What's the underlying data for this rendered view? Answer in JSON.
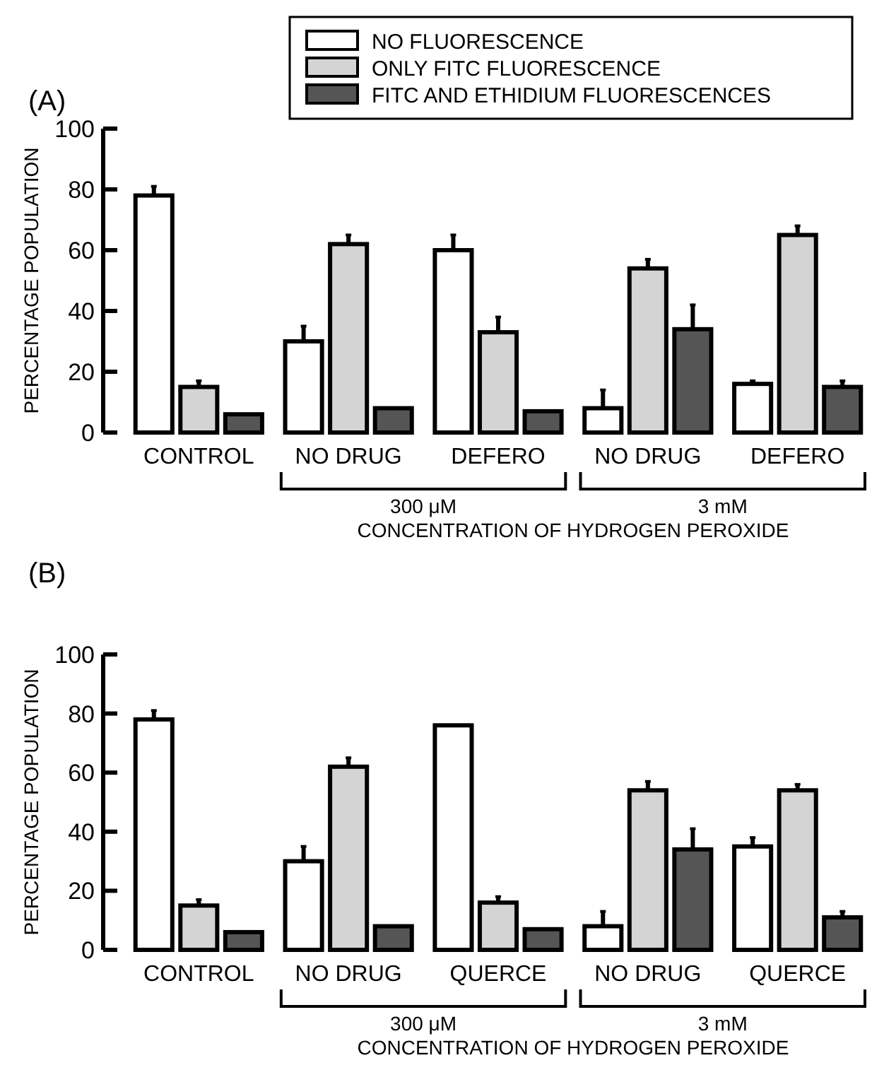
{
  "chart_data": [
    {
      "type": "bar",
      "title": "(A)",
      "ylabel": "PERCENTAGE POPULATION",
      "categories": [
        "CONTROL",
        "NO DRUG",
        "DEFERO",
        "NO DRUG",
        "DEFERO"
      ],
      "ylim": [
        0,
        100
      ],
      "yticks": [
        0,
        20,
        40,
        60,
        80,
        100
      ],
      "legend": "top right",
      "grid": false,
      "series": [
        {
          "name": "NO FLUORESCENCE",
          "color": "#ffffff",
          "values": [
            78,
            30,
            60,
            8,
            16
          ],
          "errors": [
            [
              78,
              81
            ],
            [
              30,
              35
            ],
            [
              60,
              65
            ],
            [
              8,
              14
            ],
            [
              16,
              17
            ]
          ]
        },
        {
          "name": "ONLY FITC FLUORESCENCE",
          "color": "#d4d4d4",
          "values": [
            15,
            62,
            33,
            54,
            65
          ],
          "errors": [
            [
              15,
              17
            ],
            [
              62,
              65
            ],
            [
              33,
              38
            ],
            [
              54,
              57
            ],
            [
              65,
              68
            ]
          ]
        },
        {
          "name": "FITC AND ETHIDIUM FLUORESCENCES",
          "color": "#555555",
          "values": [
            6,
            8,
            7,
            34,
            15
          ],
          "errors": [
            null,
            null,
            null,
            [
              34,
              42
            ],
            [
              15,
              17
            ]
          ]
        }
      ],
      "annotations": [
        "300 μM",
        "3 mM",
        "CONCENTRATION OF HYDROGEN PEROXIDE"
      ]
    },
    {
      "type": "bar",
      "title": "(B)",
      "ylabel": "PERCENTAGE POPULATION",
      "categories": [
        "CONTROL",
        "NO DRUG",
        "QUERCE",
        "NO DRUG",
        "QUERCE"
      ],
      "ylim": [
        0,
        100
      ],
      "yticks": [
        0,
        20,
        40,
        60,
        80,
        100
      ],
      "legend": false,
      "grid": false,
      "series": [
        {
          "color": "#ffffff",
          "values": [
            78,
            30,
            76,
            8,
            35
          ],
          "errors": [
            [
              78,
              81
            ],
            [
              30,
              35
            ],
            null,
            [
              8,
              13
            ],
            [
              35,
              38
            ]
          ]
        },
        {
          "color": "#d4d4d4",
          "values": [
            15,
            62,
            16,
            54,
            54
          ],
          "errors": [
            [
              15,
              17
            ],
            [
              62,
              65
            ],
            [
              16,
              18
            ],
            [
              54,
              57
            ],
            [
              54,
              56
            ]
          ]
        },
        {
          "color": "#555555",
          "values": [
            6,
            8,
            7,
            34,
            11
          ],
          "errors": [
            null,
            null,
            null,
            [
              34,
              41
            ],
            [
              11,
              13
            ]
          ]
        }
      ],
      "annotations": [
        "300 μM",
        "3 mM",
        "CONCENTRATION OF HYDROGEN PEROXIDE"
      ]
    }
  ]
}
